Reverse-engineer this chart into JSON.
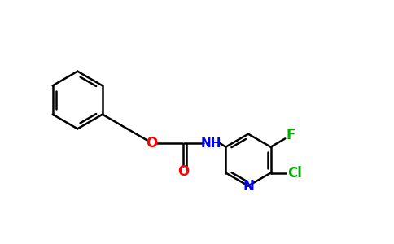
{
  "background_color": "#ffffff",
  "bond_color": "#000000",
  "oxygen_color": "#ff0000",
  "nitrogen_color": "#0000ff",
  "fluorine_color": "#00aa00",
  "chlorine_color": "#00aa00",
  "bond_width": 1.8,
  "figsize": [
    4.84,
    3.0
  ],
  "dpi": 100,
  "xlim": [
    0,
    9.68
  ],
  "ylim": [
    0,
    6.0
  ]
}
